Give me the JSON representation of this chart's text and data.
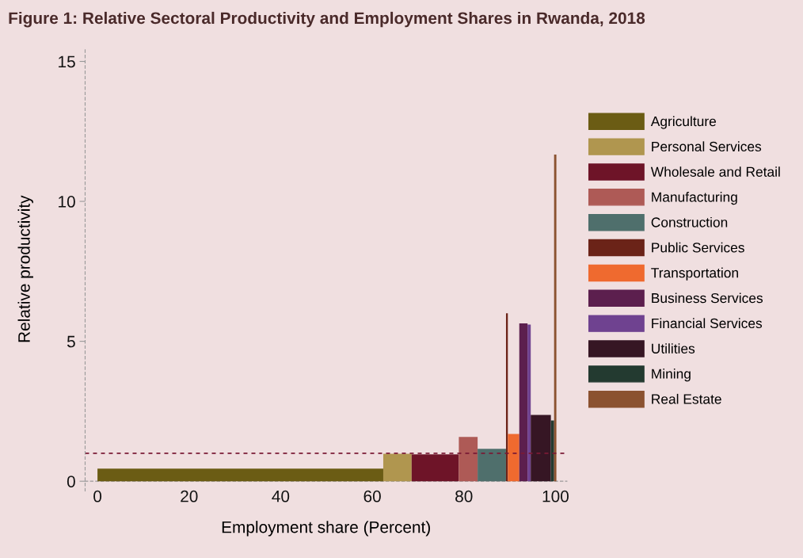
{
  "chart_data": {
    "type": "area",
    "title": "Figure 1: Relative Sectoral Productivity and Employment Shares in Rwanda, 2018",
    "xlabel": "Employment share (Percent)",
    "ylabel": "Relative productivity",
    "xlim": [
      -2.7,
      102.5
    ],
    "ylim": [
      -0.35,
      15.5
    ],
    "xticks": [
      0,
      20,
      40,
      60,
      80,
      100
    ],
    "yticks": [
      0,
      5,
      10,
      15
    ],
    "legend": "right",
    "ref_lines": [
      {
        "axis": "y",
        "value": 1,
        "color": "#7a1a35",
        "line_style": "dashed"
      }
    ],
    "series": [
      {
        "name": "Agriculture",
        "color": "#6b5c14",
        "x": [
          0,
          62.4
        ],
        "values": [
          0.45,
          0.45
        ]
      },
      {
        "name": "Personal Services",
        "color": "#b0964f",
        "x": [
          62.4,
          68.6
        ],
        "values": [
          0.98,
          0.98
        ]
      },
      {
        "name": "Wholesale and Retail",
        "color": "#6e1428",
        "x": [
          68.6,
          78.9
        ],
        "values": [
          0.96,
          0.96
        ]
      },
      {
        "name": "Manufacturing",
        "color": "#ae5a56",
        "x": [
          78.9,
          83.0
        ],
        "values": [
          1.58,
          1.58
        ]
      },
      {
        "name": "Construction",
        "color": "#4f6f6c",
        "x": [
          83.0,
          89.2
        ],
        "values": [
          1.16,
          1.16
        ]
      },
      {
        "name": "Public Services",
        "color": "#6b2318",
        "x": [
          89.2,
          89.6
        ],
        "values": [
          6.0,
          6.0
        ]
      },
      {
        "name": "Transportation",
        "color": "#ef6a2f",
        "x": [
          89.6,
          92.1
        ],
        "values": [
          1.69,
          1.69
        ]
      },
      {
        "name": "Business Services",
        "color": "#5c1f4e",
        "x": [
          92.1,
          93.9
        ],
        "values": [
          5.64,
          5.64
        ]
      },
      {
        "name": "Financial Services",
        "color": "#6f4290",
        "x": [
          93.9,
          94.6
        ],
        "values": [
          5.6,
          5.6
        ]
      },
      {
        "name": "Utilities",
        "color": "#361624",
        "x": [
          94.6,
          99.0
        ],
        "values": [
          2.37,
          2.37
        ]
      },
      {
        "name": "Mining",
        "color": "#233a30",
        "x": [
          99.0,
          99.7
        ],
        "values": [
          2.17,
          2.17
        ]
      },
      {
        "name": "Real Estate",
        "color": "#8b5230",
        "x": [
          99.7,
          100.2
        ],
        "values": [
          11.67,
          11.67
        ]
      }
    ]
  }
}
